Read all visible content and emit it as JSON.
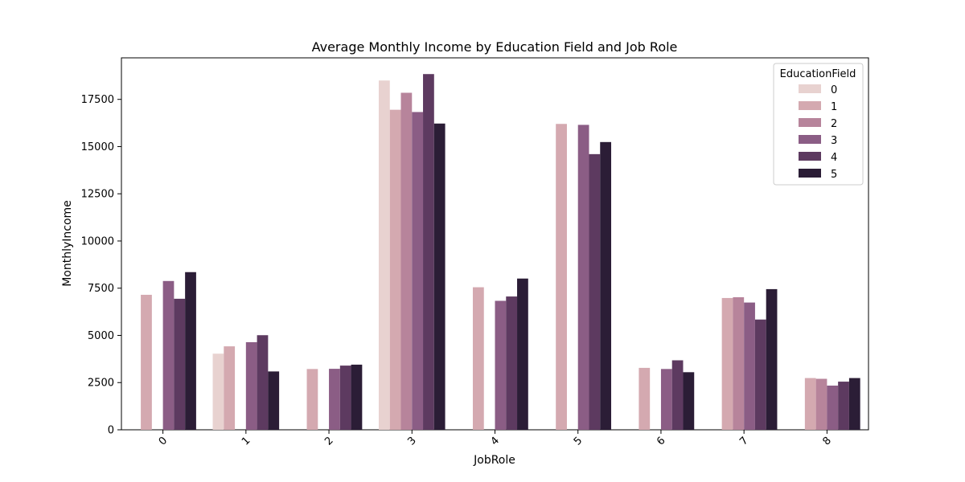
{
  "chart_data": {
    "type": "bar",
    "title": "Average Monthly Income by Education Field and Job Role",
    "xlabel": "JobRole",
    "ylabel": "MonthlyIncome",
    "categories": [
      "0",
      "1",
      "2",
      "3",
      "4",
      "5",
      "6",
      "7",
      "8"
    ],
    "ylim": [
      0,
      19700
    ],
    "yticks": [
      0,
      2500,
      5000,
      7500,
      10000,
      12500,
      15000,
      17500
    ],
    "legend": {
      "title": "EducationField",
      "position": "top-right"
    },
    "series": [
      {
        "name": "0",
        "color": "#e8d2d0",
        "values": [
          null,
          4030,
          null,
          18500,
          null,
          null,
          null,
          null,
          null
        ]
      },
      {
        "name": "1",
        "color": "#d4a9b0",
        "values": [
          7150,
          4420,
          3220,
          16950,
          7550,
          16200,
          3280,
          6980,
          2740
        ]
      },
      {
        "name": "2",
        "color": "#b7849b",
        "values": [
          null,
          null,
          null,
          17850,
          null,
          null,
          null,
          7020,
          2700
        ]
      },
      {
        "name": "3",
        "color": "#8b5d85",
        "values": [
          7880,
          4640,
          3230,
          16830,
          6830,
          16150,
          3220,
          6740,
          2340
        ]
      },
      {
        "name": "4",
        "color": "#5d3a60",
        "values": [
          6940,
          5010,
          3400,
          18840,
          7060,
          14600,
          3680,
          5840,
          2550
        ]
      },
      {
        "name": "5",
        "color": "#2b1d36",
        "values": [
          8350,
          3090,
          3450,
          16220,
          8010,
          15240,
          3050,
          7450,
          2740
        ]
      }
    ]
  }
}
